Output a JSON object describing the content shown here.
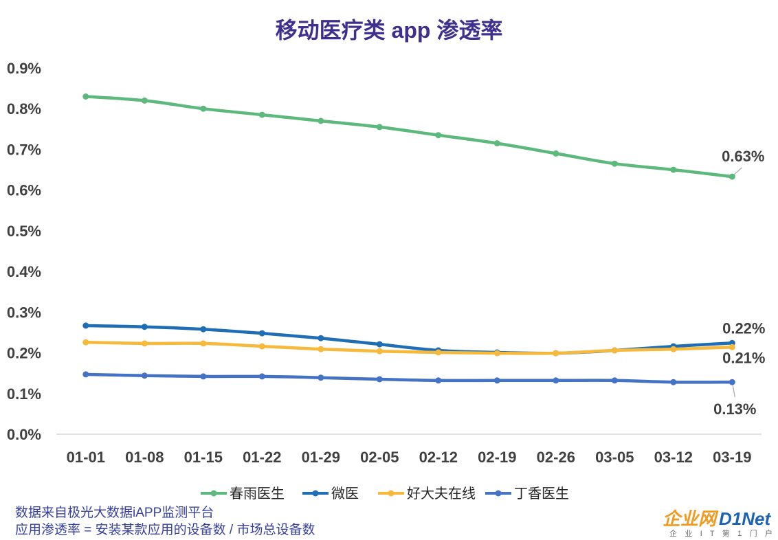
{
  "chart_data": {
    "type": "line",
    "title": "移动医疗类 app 渗透率",
    "xlabel": "",
    "ylabel": "",
    "categories": [
      "01-01",
      "01-08",
      "01-15",
      "01-22",
      "01-29",
      "02-05",
      "02-12",
      "02-19",
      "02-26",
      "03-05",
      "03-12",
      "03-19"
    ],
    "ylim": [
      0,
      0.9
    ],
    "yticks": [
      0,
      0.1,
      0.2,
      0.3,
      0.4,
      0.5,
      0.6,
      0.7,
      0.8,
      0.9
    ],
    "ytick_labels": [
      "0.0%",
      "0.1%",
      "0.2%",
      "0.3%",
      "0.4%",
      "0.5%",
      "0.6%",
      "0.7%",
      "0.8%",
      "0.9%"
    ],
    "grid": false,
    "smooth": true,
    "markers": true,
    "legend_position": "bottom",
    "series": [
      {
        "name": "春雨医生",
        "color": "#5cb87c",
        "values": [
          0.83,
          0.82,
          0.8,
          0.785,
          0.77,
          0.755,
          0.735,
          0.715,
          0.69,
          0.665,
          0.65,
          0.633
        ],
        "end_label": "0.63%"
      },
      {
        "name": "微医",
        "color": "#1f6db5",
        "values": [
          0.267,
          0.264,
          0.258,
          0.248,
          0.236,
          0.221,
          0.206,
          0.201,
          0.199,
          0.206,
          0.216,
          0.224
        ],
        "end_label": "0.22%"
      },
      {
        "name": "好大夫在线",
        "color": "#f6b93b",
        "values": [
          0.226,
          0.223,
          0.223,
          0.216,
          0.209,
          0.204,
          0.201,
          0.199,
          0.199,
          0.206,
          0.209,
          0.214
        ],
        "end_label": "0.21%"
      },
      {
        "name": "丁香医生",
        "color": "#4472c4",
        "values": [
          0.147,
          0.144,
          0.142,
          0.142,
          0.139,
          0.135,
          0.132,
          0.132,
          0.132,
          0.132,
          0.128,
          0.128
        ],
        "end_label": "0.13%"
      }
    ]
  },
  "footer": {
    "source": "数据来自极光大数据iAPP监测平台",
    "formula": "应用渗透率 = 安装某款应用的设备数 / 市场总设备数"
  },
  "logo": {
    "brand_cn": "企业网",
    "brand_en": "D1Net",
    "tagline": "企 业 I T 第 1 门 户"
  }
}
